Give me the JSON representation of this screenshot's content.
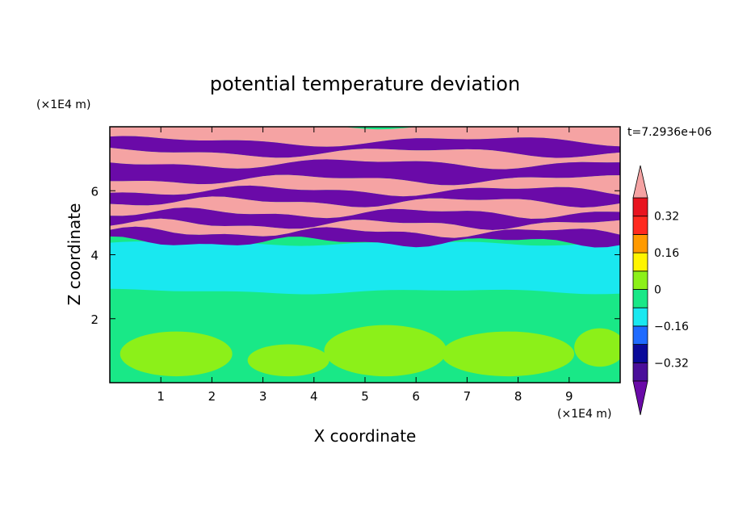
{
  "chart_data": {
    "type": "heatmap",
    "title": "potential temperature deviation",
    "xlabel": "X coordinate",
    "ylabel": "Z coordinate",
    "x_unit": "(×1E4 m)",
    "y_unit": "(×1E4 m)",
    "time_label": "t=7.2936e+06",
    "xlim": [
      0,
      10
    ],
    "ylim": [
      0,
      8
    ],
    "x_ticks": [
      1,
      2,
      3,
      4,
      5,
      6,
      7,
      8,
      9
    ],
    "y_ticks": [
      2,
      4,
      6
    ],
    "x_tick_labels": [
      "1",
      "2",
      "3",
      "4",
      "5",
      "6",
      "7",
      "8",
      "9"
    ],
    "y_tick_labels": [
      "2",
      "4",
      "6"
    ],
    "levels": [
      -0.4,
      -0.32,
      -0.24,
      -0.16,
      -0.08,
      0,
      0.08,
      0.16,
      0.24,
      0.32,
      0.4
    ],
    "colorbar_tick_values": [
      0.32,
      0.16,
      0,
      -0.16,
      -0.32
    ],
    "colorbar_tick_labels": [
      "0.32",
      "0.16",
      "0",
      "−0.16",
      "−0.32"
    ],
    "colorbar_colors": {
      "under": "#6a0aa8",
      "bins": [
        "#4a0f9a",
        "#0a0a9a",
        "#1f6bff",
        "#19e8f0",
        "#19e887",
        "#8cf019",
        "#fff500",
        "#ff9a00",
        "#ff2a1f",
        "#e8141f"
      ],
      "over": "#f5a3a3"
    },
    "regions_description_levels": {
      "upper_bands_positive": 0.45,
      "upper_bands_negative": -0.45,
      "mid_layer": -0.12,
      "lower_layer": -0.02,
      "lower_patches": 0.03
    }
  }
}
